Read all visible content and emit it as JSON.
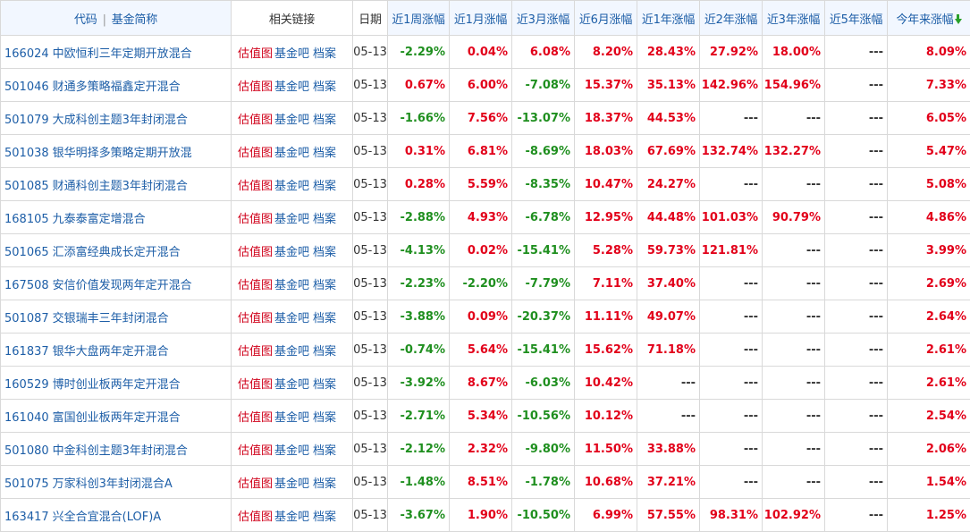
{
  "header": {
    "name_col_code": "代码",
    "name_col_sep": "|",
    "name_col_name": "基金简称",
    "links": "相关链接",
    "date": "日期",
    "w1": "近1周涨幅",
    "m1": "近1月涨幅",
    "m3": "近3月涨幅",
    "m6": "近6月涨幅",
    "y1": "近1年涨幅",
    "y2": "近2年涨幅",
    "y3": "近3年涨幅",
    "y5": "近5年涨幅",
    "ytd": "今年来涨幅",
    "sort_icon": "sort-down-arrow-icon"
  },
  "link_labels": {
    "gzt": "估值图",
    "bar": "基金吧",
    "arc": "档案"
  },
  "colors": {
    "positive": "#e2001a",
    "negative": "#1f8f1f",
    "link": "#1d5ea7",
    "valuation_link": "#d0021b"
  },
  "rows": [
    {
      "code": "166024",
      "name": "中欧恒利三年定期开放混合",
      "date": "05-13",
      "w1": "-2.29%",
      "m1": "0.04%",
      "m3": "6.08%",
      "m6": "8.20%",
      "y1": "28.43%",
      "y2": "27.92%",
      "y3": "18.00%",
      "y5": "---",
      "ytd": "8.09%"
    },
    {
      "code": "501046",
      "name": "财通多策略福鑫定开混合",
      "date": "05-13",
      "w1": "0.67%",
      "m1": "6.00%",
      "m3": "-7.08%",
      "m6": "15.37%",
      "y1": "35.13%",
      "y2": "142.96%",
      "y3": "154.96%",
      "y5": "---",
      "ytd": "7.33%"
    },
    {
      "code": "501079",
      "name": "大成科创主题3年封闭混合",
      "date": "05-13",
      "w1": "-1.66%",
      "m1": "7.56%",
      "m3": "-13.07%",
      "m6": "18.37%",
      "y1": "44.53%",
      "y2": "---",
      "y3": "---",
      "y5": "---",
      "ytd": "6.05%"
    },
    {
      "code": "501038",
      "name": "银华明择多策略定期开放混",
      "date": "05-13",
      "w1": "0.31%",
      "m1": "6.81%",
      "m3": "-8.69%",
      "m6": "18.03%",
      "y1": "67.69%",
      "y2": "132.74%",
      "y3": "132.27%",
      "y5": "---",
      "ytd": "5.47%"
    },
    {
      "code": "501085",
      "name": "财通科创主题3年封闭混合",
      "date": "05-13",
      "w1": "0.28%",
      "m1": "5.59%",
      "m3": "-8.35%",
      "m6": "10.47%",
      "y1": "24.27%",
      "y2": "---",
      "y3": "---",
      "y5": "---",
      "ytd": "5.08%"
    },
    {
      "code": "168105",
      "name": "九泰泰富定增混合",
      "date": "05-13",
      "w1": "-2.88%",
      "m1": "4.93%",
      "m3": "-6.78%",
      "m6": "12.95%",
      "y1": "44.48%",
      "y2": "101.03%",
      "y3": "90.79%",
      "y5": "---",
      "ytd": "4.86%"
    },
    {
      "code": "501065",
      "name": "汇添富经典成长定开混合",
      "date": "05-13",
      "w1": "-4.13%",
      "m1": "0.02%",
      "m3": "-15.41%",
      "m6": "5.28%",
      "y1": "59.73%",
      "y2": "121.81%",
      "y3": "---",
      "y5": "---",
      "ytd": "3.99%"
    },
    {
      "code": "167508",
      "name": "安信价值发现两年定开混合",
      "date": "05-13",
      "w1": "-2.23%",
      "m1": "-2.20%",
      "m3": "-7.79%",
      "m6": "7.11%",
      "y1": "37.40%",
      "y2": "---",
      "y3": "---",
      "y5": "---",
      "ytd": "2.69%"
    },
    {
      "code": "501087",
      "name": "交银瑞丰三年封闭混合",
      "date": "05-13",
      "w1": "-3.88%",
      "m1": "0.09%",
      "m3": "-20.37%",
      "m6": "11.11%",
      "y1": "49.07%",
      "y2": "---",
      "y3": "---",
      "y5": "---",
      "ytd": "2.64%"
    },
    {
      "code": "161837",
      "name": "银华大盘两年定开混合",
      "date": "05-13",
      "w1": "-0.74%",
      "m1": "5.64%",
      "m3": "-15.41%",
      "m6": "15.62%",
      "y1": "71.18%",
      "y2": "---",
      "y3": "---",
      "y5": "---",
      "ytd": "2.61%"
    },
    {
      "code": "160529",
      "name": "博时创业板两年定开混合",
      "date": "05-13",
      "w1": "-3.92%",
      "m1": "8.67%",
      "m3": "-6.03%",
      "m6": "10.42%",
      "y1": "---",
      "y2": "---",
      "y3": "---",
      "y5": "---",
      "ytd": "2.61%"
    },
    {
      "code": "161040",
      "name": "富国创业板两年定开混合",
      "date": "05-13",
      "w1": "-2.71%",
      "m1": "5.34%",
      "m3": "-10.56%",
      "m6": "10.12%",
      "y1": "---",
      "y2": "---",
      "y3": "---",
      "y5": "---",
      "ytd": "2.54%"
    },
    {
      "code": "501080",
      "name": "中金科创主题3年封闭混合",
      "date": "05-13",
      "w1": "-2.12%",
      "m1": "2.32%",
      "m3": "-9.80%",
      "m6": "11.50%",
      "y1": "33.88%",
      "y2": "---",
      "y3": "---",
      "y5": "---",
      "ytd": "2.06%"
    },
    {
      "code": "501075",
      "name": "万家科创3年封闭混合A",
      "date": "05-13",
      "w1": "-1.48%",
      "m1": "8.51%",
      "m3": "-1.78%",
      "m6": "10.68%",
      "y1": "37.21%",
      "y2": "---",
      "y3": "---",
      "y5": "---",
      "ytd": "1.54%"
    },
    {
      "code": "163417",
      "name": "兴全合宜混合(LOF)A",
      "date": "05-13",
      "w1": "-3.67%",
      "m1": "1.90%",
      "m3": "-10.50%",
      "m6": "6.99%",
      "y1": "57.55%",
      "y2": "98.31%",
      "y3": "102.92%",
      "y5": "---",
      "ytd": "1.25%"
    }
  ]
}
